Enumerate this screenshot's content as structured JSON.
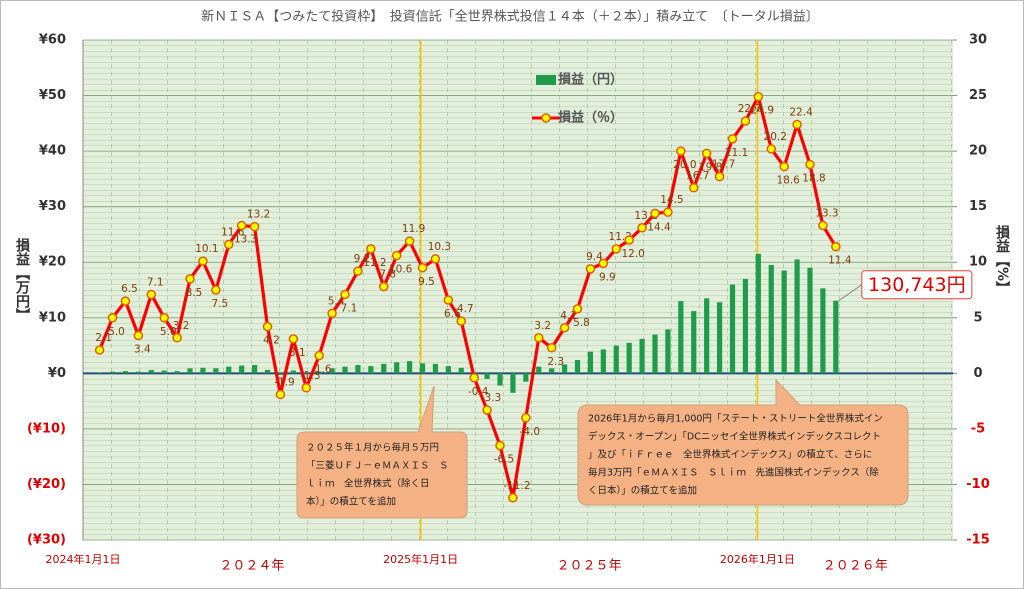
{
  "chart_data": {
    "type": "combo",
    "title": "新ＮＩＳＡ【つみたて投資枠】　投資信託「全世界株式投信１４本（＋２本）」積み立て　〔トータル損益〕",
    "y_label": "損益【万円】",
    "y2_label": "損益【%】",
    "x": [
      "2024-01-19",
      "2024-02-02",
      "2024-02-16",
      "2024-03-01",
      "2024-03-15",
      "2024-03-29",
      "2024-04-12",
      "2024-04-26",
      "2024-05-10",
      "2024-05-24",
      "2024-06-07",
      "2024-06-21",
      "2024-07-05",
      "2024-07-19",
      "2024-08-02",
      "2024-08-16",
      "2024-08-30",
      "2024-09-13",
      "2024-09-27",
      "2024-10-11",
      "2024-10-25",
      "2024-11-08",
      "2024-11-22",
      "2024-12-06",
      "2024-12-20",
      "2025-01-03",
      "2025-01-17",
      "2025-01-31",
      "2025-02-14",
      "2025-02-28",
      "2025-03-14",
      "2025-03-28",
      "2025-04-11",
      "2025-04-25",
      "2025-05-09",
      "2025-05-23",
      "2025-06-06",
      "2025-06-20",
      "2025-07-04",
      "2025-07-18",
      "2025-08-01",
      "2025-08-15",
      "2025-08-29",
      "2025-09-12",
      "2025-09-26",
      "2025-10-10",
      "2025-10-24",
      "2025-11-07",
      "2025-11-21",
      "2025-12-05",
      "2025-12-19",
      "2026-01-02",
      "2026-01-16",
      "2026-01-30",
      "2026-02-13",
      "2026-02-27",
      "2026-03-13",
      "2026-03-27"
    ],
    "xlim": [
      "2024-01-01",
      "2026-08-01"
    ],
    "xticks": [
      {
        "value": "2024-01-01",
        "label": "2024年1月1日"
      },
      {
        "value": "2025-01-01",
        "label": "2025年1月1日"
      },
      {
        "value": "2026-01-01",
        "label": "2026年1月1日"
      }
    ],
    "period_labels": [
      "２０２４年",
      "２０２５年",
      "２０２６年"
    ],
    "ylim": [
      -30,
      60
    ],
    "yticks": [
      {
        "value": -30,
        "label": "(¥30)"
      },
      {
        "value": -20,
        "label": "(¥20)"
      },
      {
        "value": -10,
        "label": "(¥10)"
      },
      {
        "value": 0,
        "label": "¥0"
      },
      {
        "value": 10,
        "label": "¥10"
      },
      {
        "value": 20,
        "label": "¥20"
      },
      {
        "value": 30,
        "label": "¥30"
      },
      {
        "value": 40,
        "label": "¥40"
      },
      {
        "value": 50,
        "label": "¥50"
      },
      {
        "value": 60,
        "label": "¥60"
      }
    ],
    "y2lim": [
      -15,
      30
    ],
    "y2ticks": [
      -15,
      -10,
      -5,
      0,
      5,
      10,
      15,
      20,
      25,
      30
    ],
    "grid": true,
    "legend": "top",
    "series": [
      {
        "name": "損益（円）",
        "type": "bar",
        "color": "#1e9c4a",
        "values": [
          0.1,
          0.3,
          0.4,
          0.3,
          0.6,
          0.5,
          0.4,
          0.9,
          1.0,
          0.9,
          1.2,
          1.4,
          1.5,
          0.6,
          -0.3,
          0.5,
          -0.2,
          0.3,
          0.9,
          1.2,
          1.5,
          1.3,
          1.7,
          2.0,
          2.2,
          1.8,
          1.7,
          1.3,
          1.0,
          -0.1,
          -1.0,
          -2.2,
          -3.5,
          -1.5,
          1.2,
          0.9,
          1.6,
          2.4,
          3.9,
          4.3,
          5.0,
          5.5,
          6.2,
          7.0,
          7.9,
          13.0,
          11.2,
          13.5,
          12.8,
          16.0,
          17.0,
          21.5,
          19.5,
          18.5,
          20.5,
          19.0,
          15.3,
          13.0743
        ],
        "value_labels": [
          null,
          null,
          null,
          null,
          null,
          null,
          null,
          null,
          null,
          null,
          null,
          null,
          null,
          null,
          null,
          null,
          null,
          null,
          null,
          null,
          null,
          null,
          null,
          null,
          null,
          null,
          null,
          null,
          null,
          null,
          null,
          null,
          null,
          null,
          null,
          null,
          null,
          null,
          null,
          null,
          null,
          null,
          null,
          null,
          null,
          null,
          null,
          null,
          null,
          null,
          null,
          null,
          null,
          null,
          null,
          null,
          null,
          "130,743円"
        ]
      },
      {
        "name": "損益（％）",
        "type": "line",
        "axis": "y2",
        "color": "#ff0000",
        "values": [
          2.1,
          5.0,
          6.5,
          3.4,
          7.1,
          5.0,
          3.2,
          8.5,
          10.1,
          7.5,
          11.6,
          13.3,
          13.2,
          4.2,
          -1.9,
          3.1,
          -1.3,
          1.6,
          5.4,
          7.1,
          9.2,
          11.2,
          7.8,
          10.6,
          11.9,
          9.5,
          10.3,
          6.6,
          4.7,
          -0.4,
          -3.3,
          -6.5,
          -11.2,
          -4.0,
          3.2,
          2.3,
          4.1,
          5.8,
          9.4,
          9.9,
          11.2,
          12.0,
          13.1,
          14.4,
          14.5,
          20.0,
          16.7,
          19.8,
          17.7,
          21.1,
          22.7,
          24.9,
          20.2,
          18.6,
          22.4,
          18.8,
          13.3,
          11.4
        ],
        "value_labels": [
          "2.1",
          "5.0",
          "6.5",
          "3.4",
          "7.1",
          "5.0",
          "3.2",
          "8.5",
          "10.1",
          "7.5",
          "11.6",
          "13.3",
          "13.2",
          "4.2",
          "-1.9",
          "3.1",
          "-1.3",
          "1.6",
          "5.4",
          "7.1",
          "9.2",
          "11.2",
          "7.8",
          "10.6",
          "11.9",
          "9.5",
          "10.3",
          "6.6",
          "4.7",
          "-0.4",
          "-3.3",
          "-6.5",
          "-11.2",
          "-4.0",
          "3.2",
          "2.3",
          "4.1",
          "5.8",
          "9.4",
          "9.9",
          "11.2",
          "12.0",
          "13.1",
          "14.4",
          "14.5",
          "20.0",
          "16.7",
          "19.8",
          "17.7",
          "21.1",
          "22.7",
          "24.9",
          "20.2",
          "18.6",
          "22.4",
          "18.8",
          "13.3",
          "11.4"
        ]
      }
    ],
    "annotations": [
      {
        "lines": [
          "２０２５年１月から毎月５万円",
          "「三菱ＵＦＪ－ｅＭＡＸＩＳ　Ｓ",
          "ｌｉｍ　全世界株式（除く日",
          "本）」の積立てを追加"
        ]
      },
      {
        "lines": [
          "2026年1月から毎月1,000円「ステート・ストリート全世界株式イン",
          "デックス・オープン」「DCニッセイ全世界株式インデックスコレクト",
          "」及び「ｉＦｒｅｅ　全世界株式インデックス」の積立て、さらに",
          "毎月3万円「ｅＭＡＸＩＳ　Ｓｌｉｍ　先進国株式インデックス（除",
          "く日本）」の積立てを追加"
        ]
      }
    ]
  }
}
